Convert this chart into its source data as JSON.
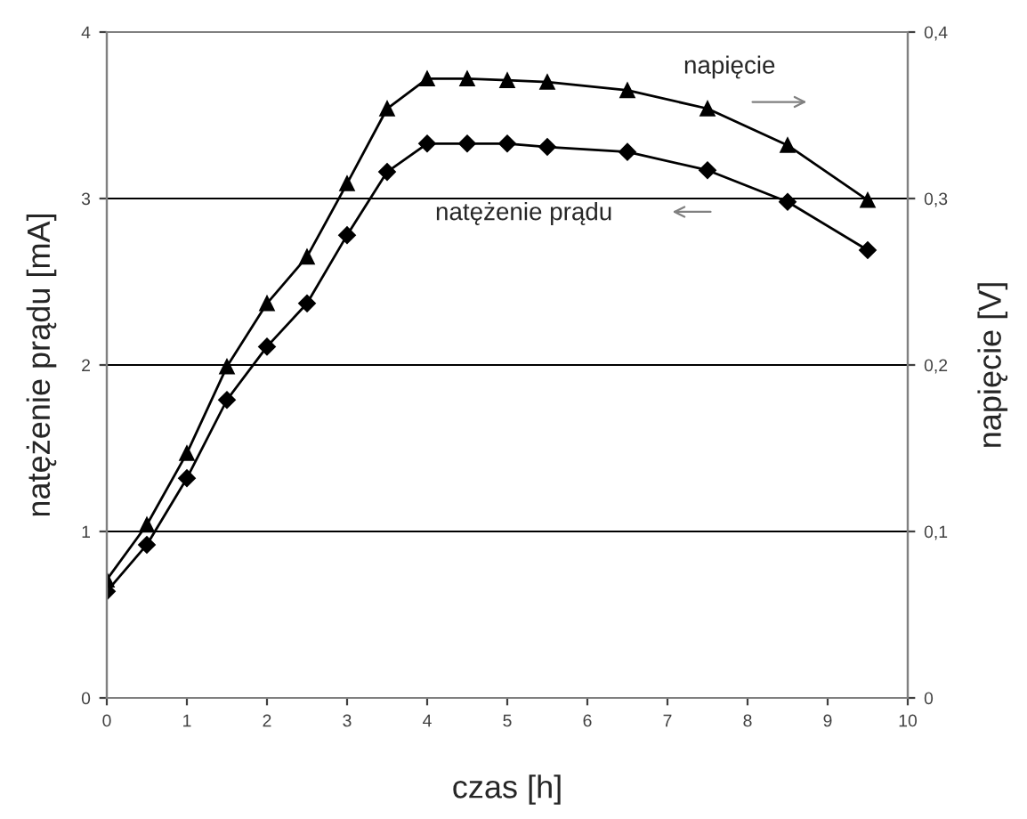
{
  "chart_data": {
    "type": "line",
    "xlabel": "czas [h]",
    "ylabel": "natężenie prądu [mA]",
    "y2label": "napięcie [V]",
    "x": [
      0,
      0.5,
      1,
      1.5,
      2,
      2.5,
      3,
      3.5,
      4,
      4.5,
      5,
      5.5,
      6.5,
      7.5,
      8.5,
      9.5
    ],
    "series": [
      {
        "name": "napięcie",
        "color": "#000000",
        "axis": "y2",
        "marker": "triangle",
        "values": [
          0.071,
          0.104,
          0.147,
          0.199,
          0.237,
          0.265,
          0.309,
          0.354,
          0.372,
          0.372,
          0.371,
          0.37,
          0.365,
          0.354,
          0.332,
          0.299
        ]
      },
      {
        "name": "natężenie prądu",
        "color": "#000000",
        "marker": "diamond",
        "values": [
          0.64,
          0.92,
          1.32,
          1.79,
          2.11,
          2.37,
          2.78,
          3.16,
          3.33,
          3.33,
          3.33,
          3.31,
          3.28,
          3.17,
          2.98,
          2.69
        ]
      }
    ],
    "xlim": [
      0,
      10
    ],
    "xticks": [
      0,
      1,
      2,
      3,
      4,
      5,
      6,
      7,
      8,
      9,
      10
    ],
    "ylim": [
      0,
      4
    ],
    "yticks": [
      0,
      1,
      2,
      3,
      4
    ],
    "y2lim": [
      0,
      0.4
    ],
    "y2ticks": [
      {
        "value": 0,
        "label": "0"
      },
      {
        "value": 0.1,
        "label": "0,1"
      },
      {
        "value": 0.2,
        "label": "0,2"
      },
      {
        "value": 0.3,
        "label": "0,3"
      },
      {
        "value": 0.4,
        "label": "0,4"
      }
    ],
    "grid": "y",
    "legend": false,
    "line_style": "solid"
  }
}
